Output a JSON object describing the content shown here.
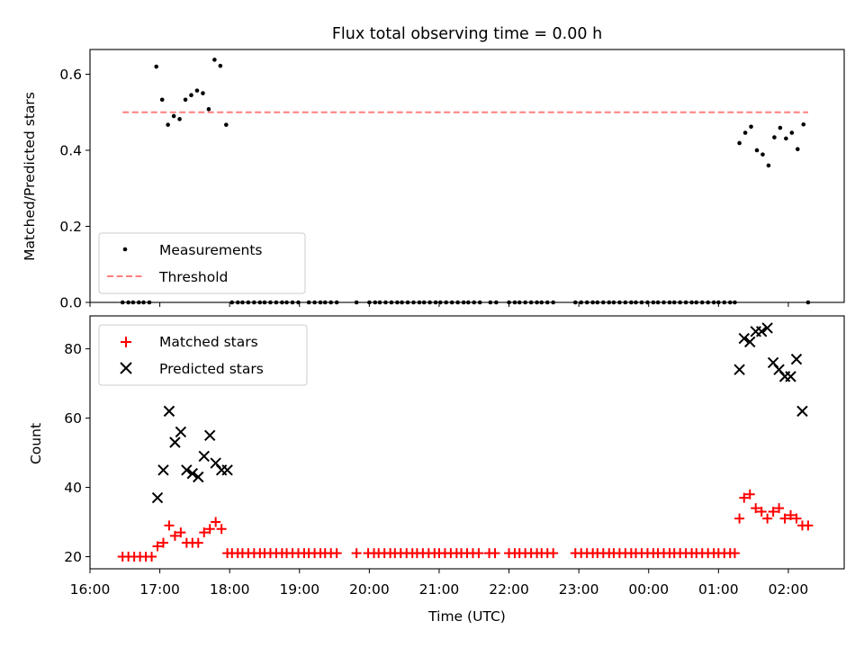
{
  "figure": {
    "title": "Flux total observing time = 0.00 h",
    "xlabel": "Time (UTC)"
  },
  "chart_data": [
    {
      "type": "scatter",
      "ylabel": "Matched/Predicted stars",
      "xlim": [
        "16:00",
        "02:48"
      ],
      "ylim": [
        0,
        0.665
      ],
      "yticks": [
        0.0,
        0.2,
        0.4,
        0.6
      ],
      "grid": false,
      "legend_position": "lower-left",
      "series": [
        {
          "name": "Measurements",
          "marker": "dot",
          "color": "#000000",
          "points": [
            [
              "16:28",
              0
            ],
            [
              "16:33",
              0
            ],
            [
              "16:37",
              0
            ],
            [
              "16:42",
              0
            ],
            [
              "16:46",
              0
            ],
            [
              "16:51",
              0
            ],
            [
              "16:57",
              0.62
            ],
            [
              "17:02",
              0.533
            ],
            [
              "17:07",
              0.467
            ],
            [
              "17:12",
              0.49
            ],
            [
              "17:17",
              0.482
            ],
            [
              "17:22",
              0.533
            ],
            [
              "17:27",
              0.545
            ],
            [
              "17:32",
              0.557
            ],
            [
              "17:37",
              0.55
            ],
            [
              "17:42",
              0.508
            ],
            [
              "17:47",
              0.638
            ],
            [
              "17:52",
              0.622
            ],
            [
              "17:57",
              0.467
            ],
            [
              "18:02",
              0
            ],
            [
              "18:07",
              0
            ],
            [
              "18:11",
              0
            ],
            [
              "18:16",
              0
            ],
            [
              "18:21",
              0
            ],
            [
              "18:26",
              0
            ],
            [
              "18:30",
              0
            ],
            [
              "18:35",
              0
            ],
            [
              "18:40",
              0
            ],
            [
              "18:45",
              0
            ],
            [
              "18:49",
              0
            ],
            [
              "18:54",
              0
            ],
            [
              "18:59",
              0
            ],
            [
              "19:08",
              0
            ],
            [
              "19:13",
              0
            ],
            [
              "19:18",
              0
            ],
            [
              "19:22",
              0
            ],
            [
              "19:27",
              0
            ],
            [
              "19:32",
              0
            ],
            [
              "19:49",
              0
            ],
            [
              "20:00",
              0
            ],
            [
              "20:05",
              0
            ],
            [
              "20:09",
              0
            ],
            [
              "20:14",
              0
            ],
            [
              "20:19",
              0
            ],
            [
              "20:24",
              0
            ],
            [
              "20:28",
              0
            ],
            [
              "20:33",
              0
            ],
            [
              "20:38",
              0
            ],
            [
              "20:43",
              0
            ],
            [
              "20:47",
              0
            ],
            [
              "20:52",
              0
            ],
            [
              "20:57",
              0
            ],
            [
              "21:01",
              0
            ],
            [
              "21:06",
              0
            ],
            [
              "21:11",
              0
            ],
            [
              "21:16",
              0
            ],
            [
              "21:21",
              0
            ],
            [
              "21:25",
              0
            ],
            [
              "21:30",
              0
            ],
            [
              "21:35",
              0
            ],
            [
              "21:44",
              0
            ],
            [
              "21:49",
              0
            ],
            [
              "22:00",
              0
            ],
            [
              "22:05",
              0
            ],
            [
              "22:09",
              0
            ],
            [
              "22:14",
              0
            ],
            [
              "22:19",
              0
            ],
            [
              "22:24",
              0
            ],
            [
              "22:28",
              0
            ],
            [
              "22:33",
              0
            ],
            [
              "22:38",
              0
            ],
            [
              "22:57",
              0
            ],
            [
              "23:02",
              0
            ],
            [
              "23:07",
              0
            ],
            [
              "23:12",
              0
            ],
            [
              "23:16",
              0
            ],
            [
              "23:21",
              0
            ],
            [
              "23:26",
              0
            ],
            [
              "23:30",
              0
            ],
            [
              "23:35",
              0
            ],
            [
              "23:40",
              0
            ],
            [
              "23:45",
              0
            ],
            [
              "23:49",
              0
            ],
            [
              "23:54",
              0
            ],
            [
              "23:59",
              0
            ],
            [
              "00:04",
              0
            ],
            [
              "00:08",
              0
            ],
            [
              "00:13",
              0
            ],
            [
              "00:18",
              0
            ],
            [
              "00:22",
              0
            ],
            [
              "00:27",
              0
            ],
            [
              "00:32",
              0
            ],
            [
              "00:37",
              0
            ],
            [
              "00:41",
              0
            ],
            [
              "00:46",
              0
            ],
            [
              "00:51",
              0
            ],
            [
              "00:56",
              0
            ],
            [
              "01:00",
              0
            ],
            [
              "01:05",
              0
            ],
            [
              "01:10",
              0
            ],
            [
              "01:14",
              0
            ],
            [
              "01:18",
              0.419
            ],
            [
              "01:23",
              0.446
            ],
            [
              "01:28",
              0.462
            ],
            [
              "01:33",
              0.4
            ],
            [
              "01:38",
              0.389
            ],
            [
              "01:43",
              0.36
            ],
            [
              "01:48",
              0.434
            ],
            [
              "01:53",
              0.459
            ],
            [
              "01:58",
              0.431
            ],
            [
              "02:03",
              0.446
            ],
            [
              "02:08",
              0.403
            ],
            [
              "02:13",
              0.468
            ],
            [
              "02:17",
              0
            ]
          ]
        },
        {
          "name": "Threshold",
          "marker": "dashed-line",
          "color": "#ff7f7f",
          "points": [
            [
              "16:28",
              0.5
            ],
            [
              "02:17",
              0.5
            ]
          ]
        }
      ]
    },
    {
      "type": "scatter",
      "ylabel": "Count",
      "xlim": [
        "16:00",
        "02:48"
      ],
      "ylim": [
        16.5,
        89.5
      ],
      "yticks": [
        20,
        40,
        60,
        80
      ],
      "xticks": [
        "16:00",
        "17:00",
        "18:00",
        "19:00",
        "20:00",
        "21:00",
        "22:00",
        "23:00",
        "00:00",
        "01:00",
        "02:00"
      ],
      "grid": false,
      "legend_position": "upper-left",
      "series": [
        {
          "name": "Matched stars",
          "marker": "plus",
          "color": "#ff0000",
          "points": [
            [
              "16:28",
              20
            ],
            [
              "16:33",
              20
            ],
            [
              "16:38",
              20
            ],
            [
              "16:43",
              20
            ],
            [
              "16:48",
              20
            ],
            [
              "16:53",
              20
            ],
            [
              "16:58",
              23
            ],
            [
              "17:03",
              24
            ],
            [
              "17:08",
              29
            ],
            [
              "17:13",
              26
            ],
            [
              "17:18",
              27
            ],
            [
              "17:23",
              24
            ],
            [
              "17:28",
              24
            ],
            [
              "17:33",
              24
            ],
            [
              "17:38",
              27
            ],
            [
              "17:43",
              28
            ],
            [
              "17:48",
              30
            ],
            [
              "17:53",
              28
            ],
            [
              "17:58",
              21
            ],
            [
              "18:02",
              21
            ],
            [
              "18:07",
              21
            ],
            [
              "18:11",
              21
            ],
            [
              "18:16",
              21
            ],
            [
              "18:21",
              21
            ],
            [
              "18:26",
              21
            ],
            [
              "18:30",
              21
            ],
            [
              "18:35",
              21
            ],
            [
              "18:40",
              21
            ],
            [
              "18:45",
              21
            ],
            [
              "18:49",
              21
            ],
            [
              "18:54",
              21
            ],
            [
              "18:59",
              21
            ],
            [
              "19:04",
              21
            ],
            [
              "19:08",
              21
            ],
            [
              "19:13",
              21
            ],
            [
              "19:18",
              21
            ],
            [
              "19:22",
              21
            ],
            [
              "19:27",
              21
            ],
            [
              "19:32",
              21
            ],
            [
              "19:49",
              21
            ],
            [
              "19:59",
              21
            ],
            [
              "20:04",
              21
            ],
            [
              "20:08",
              21
            ],
            [
              "20:13",
              21
            ],
            [
              "20:18",
              21
            ],
            [
              "20:22",
              21
            ],
            [
              "20:27",
              21
            ],
            [
              "20:32",
              21
            ],
            [
              "20:37",
              21
            ],
            [
              "20:41",
              21
            ],
            [
              "20:46",
              21
            ],
            [
              "20:51",
              21
            ],
            [
              "20:56",
              21
            ],
            [
              "21:00",
              21
            ],
            [
              "21:05",
              21
            ],
            [
              "21:10",
              21
            ],
            [
              "21:15",
              21
            ],
            [
              "21:19",
              21
            ],
            [
              "21:24",
              21
            ],
            [
              "21:29",
              21
            ],
            [
              "21:34",
              21
            ],
            [
              "21:43",
              21
            ],
            [
              "21:48",
              21
            ],
            [
              "22:00",
              21
            ],
            [
              "22:05",
              21
            ],
            [
              "22:09",
              21
            ],
            [
              "22:14",
              21
            ],
            [
              "22:19",
              21
            ],
            [
              "22:24",
              21
            ],
            [
              "22:28",
              21
            ],
            [
              "22:33",
              21
            ],
            [
              "22:38",
              21
            ],
            [
              "22:57",
              21
            ],
            [
              "23:02",
              21
            ],
            [
              "23:07",
              21
            ],
            [
              "23:12",
              21
            ],
            [
              "23:16",
              21
            ],
            [
              "23:21",
              21
            ],
            [
              "23:26",
              21
            ],
            [
              "23:30",
              21
            ],
            [
              "23:35",
              21
            ],
            [
              "23:40",
              21
            ],
            [
              "23:45",
              21
            ],
            [
              "23:49",
              21
            ],
            [
              "23:54",
              21
            ],
            [
              "23:59",
              21
            ],
            [
              "00:04",
              21
            ],
            [
              "00:08",
              21
            ],
            [
              "00:13",
              21
            ],
            [
              "00:18",
              21
            ],
            [
              "00:22",
              21
            ],
            [
              "00:27",
              21
            ],
            [
              "00:32",
              21
            ],
            [
              "00:37",
              21
            ],
            [
              "00:41",
              21
            ],
            [
              "00:46",
              21
            ],
            [
              "00:51",
              21
            ],
            [
              "00:56",
              21
            ],
            [
              "01:00",
              21
            ],
            [
              "01:05",
              21
            ],
            [
              "01:10",
              21
            ],
            [
              "01:14",
              21
            ],
            [
              "01:18",
              31
            ],
            [
              "01:22",
              37
            ],
            [
              "01:27",
              38
            ],
            [
              "01:32",
              34
            ],
            [
              "01:37",
              33
            ],
            [
              "01:42",
              31
            ],
            [
              "01:47",
              33
            ],
            [
              "01:52",
              34
            ],
            [
              "01:57",
              31
            ],
            [
              "02:02",
              32
            ],
            [
              "02:07",
              31
            ],
            [
              "02:12",
              29
            ],
            [
              "02:17",
              29
            ]
          ]
        },
        {
          "name": "Predicted stars",
          "marker": "x",
          "color": "#000000",
          "points": [
            [
              "16:58",
              37
            ],
            [
              "17:03",
              45
            ],
            [
              "17:08",
              62
            ],
            [
              "17:13",
              53
            ],
            [
              "17:18",
              56
            ],
            [
              "17:23",
              45
            ],
            [
              "17:28",
              44
            ],
            [
              "17:33",
              43
            ],
            [
              "17:38",
              49
            ],
            [
              "17:43",
              55
            ],
            [
              "17:48",
              47
            ],
            [
              "17:53",
              45
            ],
            [
              "17:58",
              45
            ],
            [
              "01:18",
              74
            ],
            [
              "01:22",
              83
            ],
            [
              "01:27",
              82
            ],
            [
              "01:32",
              85
            ],
            [
              "01:37",
              85
            ],
            [
              "01:42",
              86
            ],
            [
              "01:47",
              76
            ],
            [
              "01:52",
              74
            ],
            [
              "01:57",
              72
            ],
            [
              "02:02",
              72
            ],
            [
              "02:07",
              77
            ],
            [
              "02:12",
              62
            ]
          ]
        }
      ]
    }
  ]
}
